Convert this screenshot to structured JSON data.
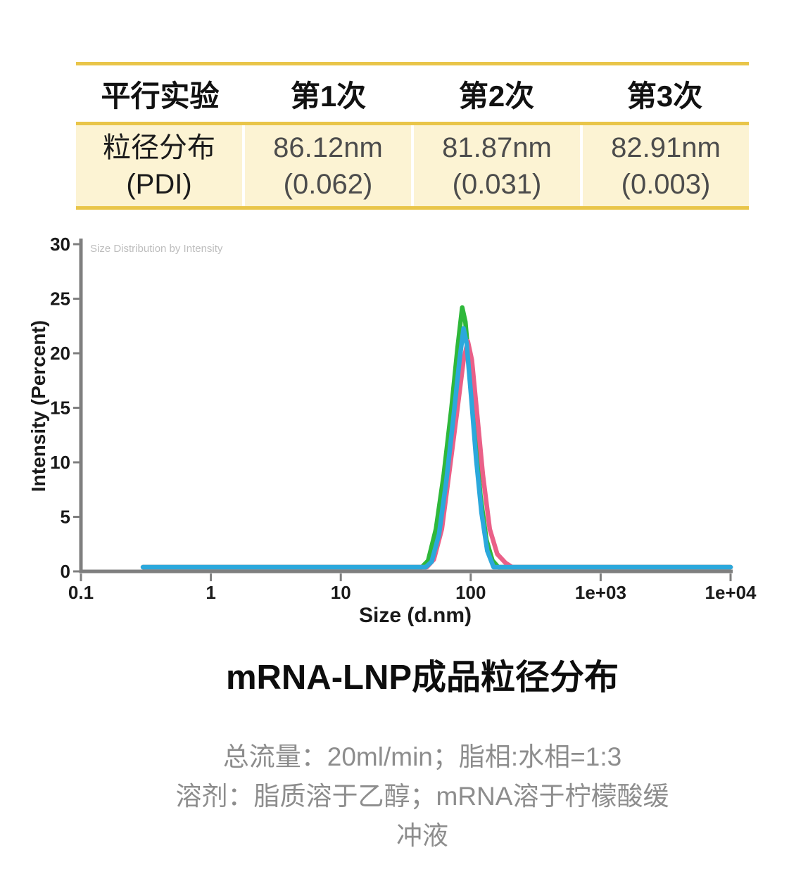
{
  "table": {
    "header": [
      "平行实验",
      "第1次",
      "第2次",
      "第3次"
    ],
    "rows": [
      {
        "label": [
          "粒径分布",
          "(PDI)"
        ],
        "values": [
          [
            "86.12nm",
            "(0.062)"
          ],
          [
            "81.87nm",
            "(0.031)"
          ],
          [
            "82.91nm",
            "(0.003)"
          ]
        ]
      }
    ],
    "accent_gold": "#e9c549",
    "row_background": "#fcf3d3"
  },
  "chart_data": {
    "type": "line",
    "title": "Size Distribution by Intensity",
    "xlabel": "Size (d.nm)",
    "ylabel": "Intensity (Percent)",
    "x_scale": "log",
    "xlim": [
      0.1,
      10000
    ],
    "ylim": [
      0,
      30
    ],
    "x_ticks": [
      0.1,
      1,
      10,
      100,
      1000,
      10000
    ],
    "x_tick_labels": [
      "0.1",
      "1",
      "10",
      "100",
      "1e+03",
      "1e+04"
    ],
    "y_ticks": [
      0,
      5,
      10,
      15,
      20,
      25,
      30
    ],
    "grid": false,
    "legend": "none",
    "axis_color": "#7f7f7f",
    "title_color": "#bdbdbd",
    "tick_label_color": "#1a1a1a",
    "series": [
      {
        "name": "green-curve",
        "color": "#2eb83a",
        "peak_nm": 86,
        "peak_intensity": 23.8,
        "x": [
          0.3,
          42,
          47,
          54,
          62,
          71,
          79,
          86,
          91,
          99,
          108,
          119,
          132,
          147,
          163,
          10000
        ],
        "y": [
          0,
          0,
          0.6,
          3.5,
          8.5,
          14.5,
          20,
          23.8,
          22.5,
          17.5,
          12,
          6.5,
          2.5,
          0.6,
          0,
          0
        ]
      },
      {
        "name": "pink-curve",
        "color": "#ea6088",
        "peak_nm": 95,
        "peak_intensity": 20.7,
        "x": [
          0.3,
          46,
          52,
          60,
          68,
          78,
          88,
          95,
          102,
          112,
          124,
          140,
          160,
          185,
          208,
          10000
        ],
        "y": [
          0,
          0,
          0.7,
          3.5,
          8.5,
          14,
          19,
          20.7,
          19,
          14,
          8.5,
          3.5,
          1.2,
          0.4,
          0,
          0
        ]
      },
      {
        "name": "blue-curve",
        "color": "#2ba8dc",
        "peak_nm": 88,
        "peak_intensity": 21.9,
        "x": [
          0.3,
          45,
          50,
          57,
          65,
          74,
          82,
          88,
          93,
          101,
          110,
          121,
          134,
          150,
          10000
        ],
        "y": [
          0,
          0,
          0.5,
          3,
          8,
          14,
          19,
          21.9,
          20.5,
          15.5,
          10,
          5,
          1.5,
          0,
          0
        ]
      }
    ]
  },
  "figure": {
    "title": "mRNA-LNP成品粒径分布",
    "captions": [
      "总流量：20ml/min；脂相:水相=1:3",
      "溶剂：脂质溶于乙醇；mRNA溶于柠檬酸缓",
      "冲液"
    ]
  }
}
